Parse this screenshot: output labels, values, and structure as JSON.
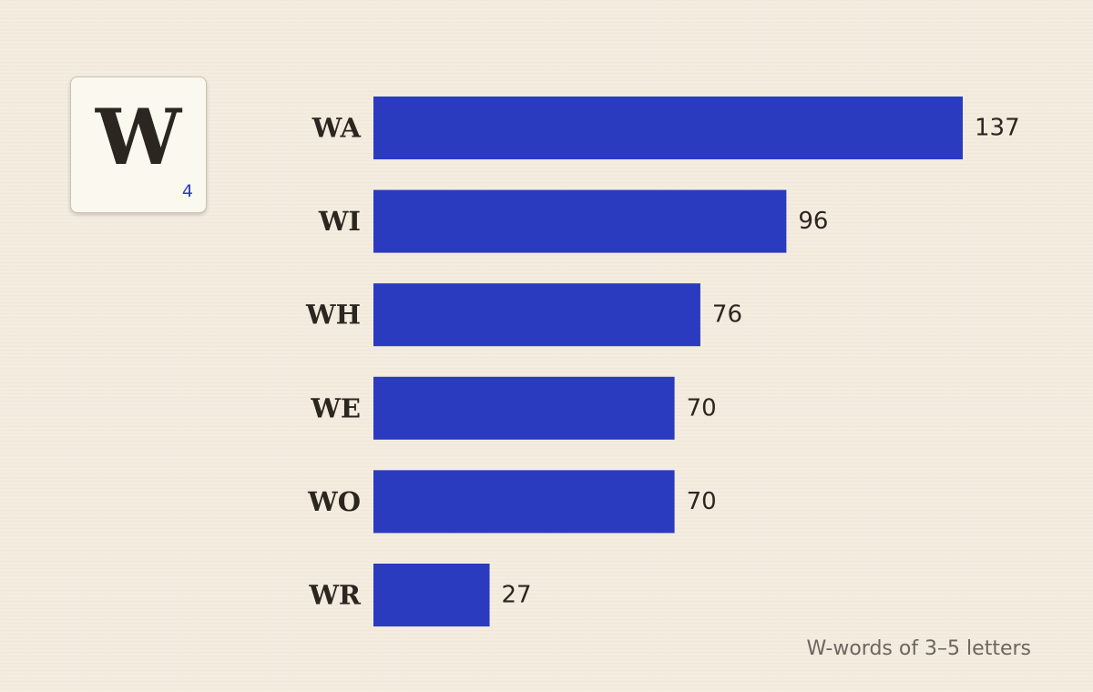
{
  "tile": {
    "letter": "W",
    "score": "4"
  },
  "caption": "W-words of 3–5 letters",
  "colors": {
    "bar": "#2b3bbf",
    "background": "#f4ecdf",
    "text": "#2b2620",
    "tile_score": "#2b3bbf"
  },
  "chart_data": {
    "type": "bar",
    "orientation": "horizontal",
    "categories": [
      "WA",
      "WI",
      "WH",
      "WE",
      "WO",
      "WR"
    ],
    "values": [
      137,
      96,
      76,
      70,
      70,
      27
    ],
    "data_labels": [
      "137",
      "96",
      "76",
      "70",
      "70",
      "27"
    ],
    "title": "",
    "xlabel": "",
    "ylabel": "",
    "xlim": [
      0,
      137
    ],
    "grid": false,
    "legend": "none"
  }
}
